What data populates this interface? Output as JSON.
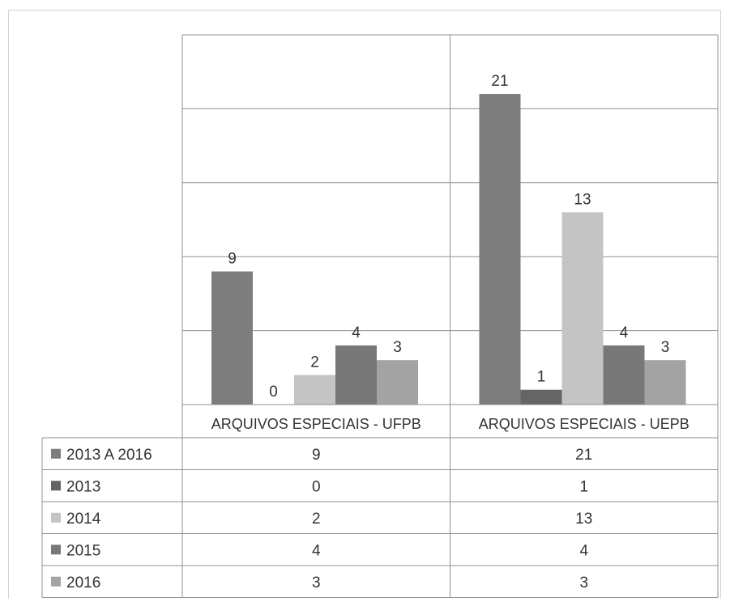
{
  "chart_data": {
    "type": "bar",
    "categories": [
      "ARQUIVOS ESPECIAIS - UFPB",
      "ARQUIVOS ESPECIAIS - UEPB"
    ],
    "series": [
      {
        "name": "2013 A 2016",
        "values": [
          9,
          21
        ],
        "color": "#7d7d7d"
      },
      {
        "name": "2013",
        "values": [
          0,
          1
        ],
        "color": "#656565"
      },
      {
        "name": "2014",
        "values": [
          2,
          13
        ],
        "color": "#c4c4c4"
      },
      {
        "name": "2015",
        "values": [
          4,
          4
        ],
        "color": "#787878"
      },
      {
        "name": "2016",
        "values": [
          3,
          3
        ],
        "color": "#a3a3a3"
      }
    ],
    "ylim": [
      0,
      25
    ],
    "y_gridline_step": 5,
    "grid": true,
    "data_labels": true,
    "legend": "data-table-left"
  }
}
